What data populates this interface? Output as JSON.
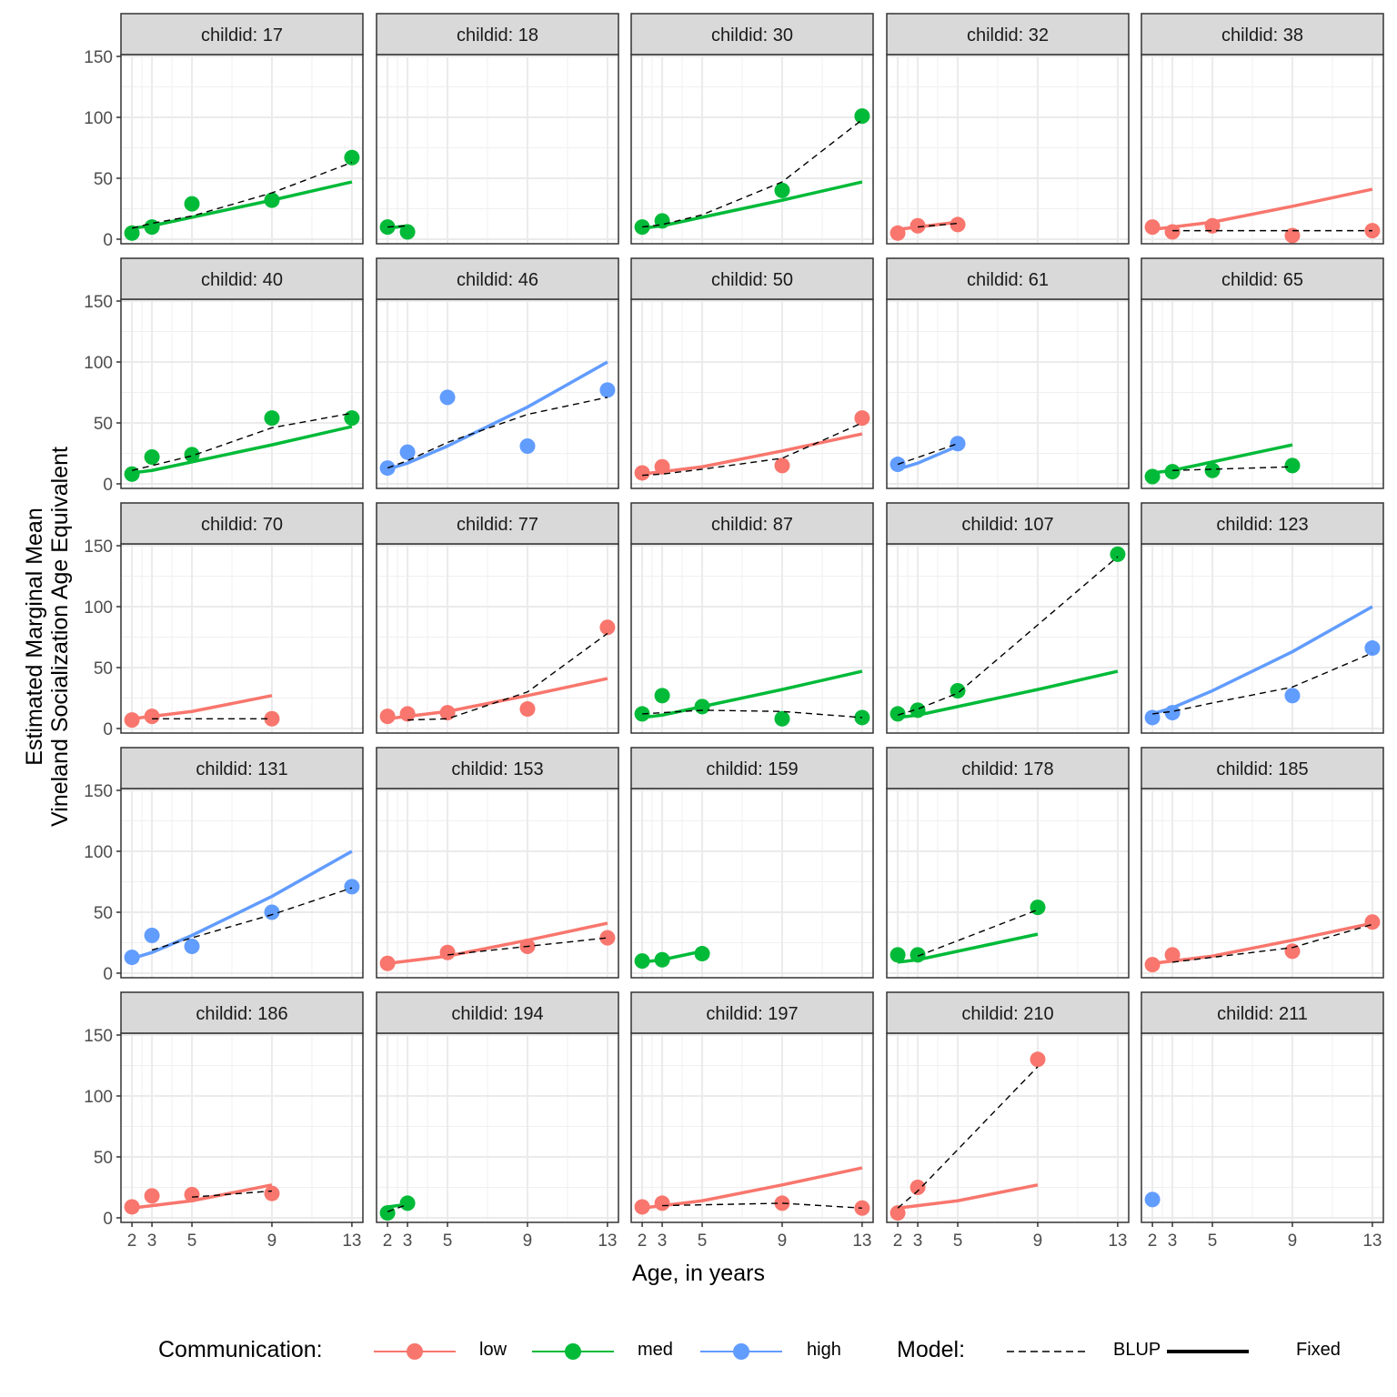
{
  "chart_data": {
    "type": "line",
    "title": "",
    "xlabel": "Age, in years",
    "ylabel_lines": [
      "Estimated Marginal Mean",
      "Vineland Socialization Age Equivalent"
    ],
    "x_ticks": [
      2,
      3,
      5,
      9,
      13
    ],
    "x_tick_labels": [
      "2",
      "3",
      "5",
      "9",
      "13"
    ],
    "y_ticks": [
      0,
      50,
      100,
      150
    ],
    "y_tick_labels": [
      "0",
      "50",
      "100",
      "150"
    ],
    "xlim": [
      1.45,
      13.55
    ],
    "ylim": [
      -3,
      150
    ],
    "grid": true,
    "facet_prefix": "childid: ",
    "legend": {
      "position": "bottom",
      "communication_title": "Communication:",
      "communication_levels": [
        {
          "key": "low",
          "label": "low",
          "color": "#F8766D"
        },
        {
          "key": "med",
          "label": "med",
          "color": "#00BA38"
        },
        {
          "key": "high",
          "label": "high",
          "color": "#619CFF"
        }
      ],
      "model_title": "Model:",
      "model_levels": [
        {
          "key": "blup",
          "label": "BLUP",
          "linetype": "dashed"
        },
        {
          "key": "fixed",
          "label": "Fixed",
          "linetype": "solid"
        }
      ]
    },
    "fixed_curves": {
      "low": {
        "x": [
          2,
          3,
          5,
          9,
          13
        ],
        "y": [
          8,
          10,
          14,
          27,
          41
        ]
      },
      "med": {
        "x": [
          2,
          3,
          5,
          9,
          13
        ],
        "y": [
          9,
          11,
          18,
          32,
          47
        ]
      },
      "high": {
        "x": [
          2,
          3,
          5,
          9,
          13
        ],
        "y": [
          12,
          17,
          31,
          63,
          100
        ]
      }
    },
    "panels": [
      {
        "id": "17",
        "group": "med",
        "points": [
          [
            2,
            5
          ],
          [
            3,
            10
          ],
          [
            5,
            29
          ],
          [
            9,
            32
          ],
          [
            13,
            67
          ]
        ],
        "blup": [
          [
            2,
            9
          ],
          [
            3,
            13
          ],
          [
            5,
            19
          ],
          [
            9,
            38
          ],
          [
            13,
            63
          ]
        ]
      },
      {
        "id": "18",
        "group": "med",
        "points": [
          [
            2,
            10
          ],
          [
            3,
            6
          ]
        ],
        "blup": [
          [
            2,
            10
          ],
          [
            3,
            11
          ]
        ]
      },
      {
        "id": "30",
        "group": "med",
        "points": [
          [
            2,
            10
          ],
          [
            3,
            15
          ],
          [
            9,
            40
          ],
          [
            13,
            101
          ]
        ],
        "blup": [
          [
            2,
            10
          ],
          [
            3,
            12
          ],
          [
            5,
            20
          ],
          [
            9,
            47
          ],
          [
            13,
            98
          ]
        ]
      },
      {
        "id": "32",
        "group": "low",
        "points": [
          [
            2,
            5
          ],
          [
            3,
            11
          ],
          [
            5,
            12
          ]
        ],
        "blup": [
          [
            3,
            10
          ],
          [
            5,
            13
          ]
        ]
      },
      {
        "id": "38",
        "group": "low",
        "points": [
          [
            2,
            10
          ],
          [
            3,
            6
          ],
          [
            5,
            11
          ],
          [
            9,
            3
          ],
          [
            13,
            7
          ]
        ],
        "blup": [
          [
            3,
            7
          ],
          [
            5,
            7
          ],
          [
            9,
            7
          ],
          [
            13,
            7
          ]
        ]
      },
      {
        "id": "40",
        "group": "med",
        "points": [
          [
            2,
            8
          ],
          [
            3,
            22
          ],
          [
            5,
            24
          ],
          [
            9,
            54
          ],
          [
            13,
            54
          ]
        ],
        "blup": [
          [
            2,
            11
          ],
          [
            3,
            15
          ],
          [
            5,
            23
          ],
          [
            9,
            46
          ],
          [
            13,
            58
          ]
        ]
      },
      {
        "id": "46",
        "group": "high",
        "points": [
          [
            2,
            13
          ],
          [
            3,
            26
          ],
          [
            5,
            71
          ],
          [
            9,
            31
          ],
          [
            13,
            77
          ]
        ],
        "blup": [
          [
            2,
            13
          ],
          [
            3,
            19
          ],
          [
            5,
            34
          ],
          [
            9,
            57
          ],
          [
            13,
            71
          ]
        ]
      },
      {
        "id": "50",
        "group": "low",
        "points": [
          [
            2,
            9
          ],
          [
            3,
            14
          ],
          [
            9,
            15
          ],
          [
            13,
            54
          ]
        ],
        "blup": [
          [
            2,
            7
          ],
          [
            3,
            8
          ],
          [
            5,
            12
          ],
          [
            9,
            21
          ],
          [
            13,
            50
          ]
        ]
      },
      {
        "id": "61",
        "group": "high",
        "points": [
          [
            2,
            16
          ],
          [
            5,
            33
          ]
        ],
        "blup": [
          [
            2,
            16
          ],
          [
            5,
            33
          ]
        ]
      },
      {
        "id": "65",
        "group": "med",
        "points": [
          [
            2,
            6
          ],
          [
            3,
            10
          ],
          [
            5,
            11
          ],
          [
            9,
            15
          ]
        ],
        "blup": [
          [
            3,
            11
          ],
          [
            5,
            12
          ],
          [
            9,
            14
          ]
        ]
      },
      {
        "id": "70",
        "group": "low",
        "points": [
          [
            2,
            7
          ],
          [
            3,
            10
          ],
          [
            9,
            8
          ]
        ],
        "blup": [
          [
            3,
            8
          ],
          [
            9,
            8
          ]
        ]
      },
      {
        "id": "77",
        "group": "low",
        "points": [
          [
            2,
            10
          ],
          [
            3,
            12
          ],
          [
            5,
            13
          ],
          [
            9,
            16
          ],
          [
            13,
            83
          ]
        ],
        "blup": [
          [
            3,
            7
          ],
          [
            5,
            8
          ],
          [
            9,
            30
          ],
          [
            13,
            78
          ]
        ]
      },
      {
        "id": "87",
        "group": "med",
        "points": [
          [
            2,
            12
          ],
          [
            3,
            27
          ],
          [
            5,
            18
          ],
          [
            9,
            8
          ],
          [
            13,
            9
          ]
        ],
        "blup": [
          [
            2,
            12
          ],
          [
            5,
            15
          ],
          [
            9,
            14
          ],
          [
            13,
            9
          ]
        ]
      },
      {
        "id": "107",
        "group": "med",
        "points": [
          [
            2,
            12
          ],
          [
            3,
            15
          ],
          [
            5,
            31
          ],
          [
            13,
            143
          ]
        ],
        "blup": [
          [
            2,
            11
          ],
          [
            3,
            16
          ],
          [
            5,
            29
          ],
          [
            13,
            141
          ]
        ]
      },
      {
        "id": "123",
        "group": "high",
        "points": [
          [
            2,
            9
          ],
          [
            3,
            13
          ],
          [
            9,
            27
          ],
          [
            13,
            66
          ]
        ],
        "blup": [
          [
            2,
            12
          ],
          [
            3,
            14
          ],
          [
            5,
            21
          ],
          [
            9,
            34
          ],
          [
            13,
            62
          ]
        ]
      },
      {
        "id": "131",
        "group": "high",
        "points": [
          [
            2,
            13
          ],
          [
            3,
            31
          ],
          [
            5,
            22
          ],
          [
            9,
            50
          ],
          [
            13,
            71
          ]
        ],
        "blup": [
          [
            3,
            19
          ],
          [
            5,
            29
          ],
          [
            9,
            48
          ],
          [
            13,
            70
          ]
        ]
      },
      {
        "id": "153",
        "group": "low",
        "points": [
          [
            2,
            8
          ],
          [
            5,
            17
          ],
          [
            9,
            22
          ],
          [
            13,
            29
          ]
        ],
        "blup": [
          [
            5,
            15
          ],
          [
            9,
            22
          ],
          [
            13,
            29
          ]
        ]
      },
      {
        "id": "159",
        "group": "med",
        "points": [
          [
            2,
            10
          ],
          [
            3,
            11
          ],
          [
            5,
            16
          ]
        ],
        "blup": [
          [
            5,
            15
          ]
        ]
      },
      {
        "id": "178",
        "group": "med",
        "points": [
          [
            2,
            15
          ],
          [
            3,
            15
          ],
          [
            9,
            54
          ]
        ],
        "blup": [
          [
            3,
            14
          ],
          [
            9,
            52
          ]
        ]
      },
      {
        "id": "185",
        "group": "low",
        "points": [
          [
            2,
            7
          ],
          [
            3,
            15
          ],
          [
            9,
            18
          ],
          [
            13,
            42
          ]
        ],
        "blup": [
          [
            3,
            9
          ],
          [
            9,
            21
          ],
          [
            13,
            40
          ]
        ]
      },
      {
        "id": "186",
        "group": "low",
        "points": [
          [
            2,
            9
          ],
          [
            3,
            18
          ],
          [
            5,
            19
          ],
          [
            9,
            20
          ]
        ],
        "blup": [
          [
            5,
            17
          ],
          [
            9,
            22
          ]
        ]
      },
      {
        "id": "194",
        "group": "med",
        "points": [
          [
            2,
            4
          ],
          [
            3,
            12
          ]
        ],
        "blup": [
          [
            2,
            5
          ],
          [
            3,
            11
          ]
        ]
      },
      {
        "id": "197",
        "group": "low",
        "points": [
          [
            2,
            9
          ],
          [
            3,
            12
          ],
          [
            9,
            12
          ],
          [
            13,
            8
          ]
        ],
        "blup": [
          [
            3,
            10
          ],
          [
            9,
            12
          ],
          [
            13,
            8
          ]
        ]
      },
      {
        "id": "210",
        "group": "low",
        "points": [
          [
            2,
            4
          ],
          [
            3,
            25
          ],
          [
            9,
            130
          ]
        ],
        "blup": [
          [
            2,
            8
          ],
          [
            3,
            22
          ],
          [
            9,
            124
          ]
        ]
      },
      {
        "id": "211",
        "group": "high",
        "points": [
          [
            2,
            15
          ]
        ],
        "blup": []
      }
    ],
    "fixed_extent": {
      "17": [
        2,
        13
      ],
      "18": [
        2,
        3
      ],
      "30": [
        2,
        13
      ],
      "32": [
        2,
        5
      ],
      "38": [
        2,
        13
      ],
      "40": [
        2,
        13
      ],
      "46": [
        2,
        13
      ],
      "50": [
        2,
        13
      ],
      "61": [
        2,
        5
      ],
      "65": [
        2,
        9
      ],
      "70": [
        2,
        9
      ],
      "77": [
        2,
        13
      ],
      "87": [
        2,
        13
      ],
      "107": [
        2,
        13
      ],
      "123": [
        2,
        13
      ],
      "131": [
        2,
        13
      ],
      "153": [
        2,
        13
      ],
      "159": [
        2,
        5
      ],
      "178": [
        2,
        9
      ],
      "185": [
        2,
        13
      ],
      "186": [
        2,
        9
      ],
      "194": [
        2,
        3
      ],
      "197": [
        2,
        13
      ],
      "210": [
        2,
        9
      ],
      "211": [
        2,
        2
      ]
    }
  }
}
